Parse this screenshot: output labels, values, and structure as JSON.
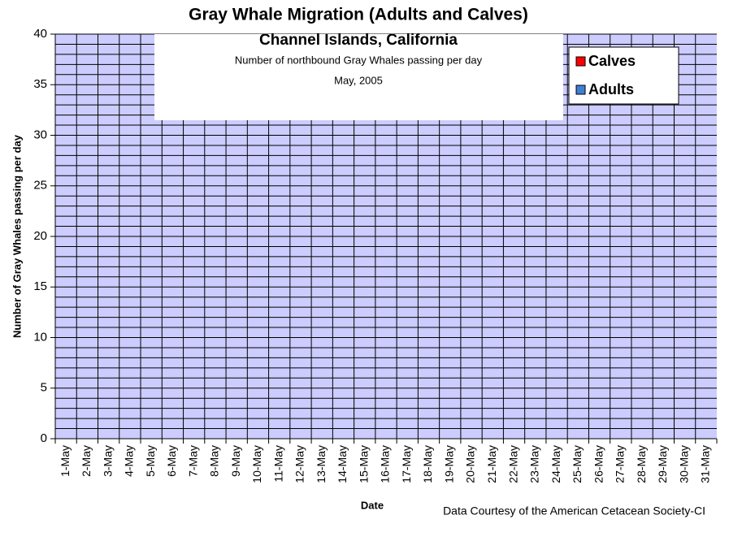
{
  "chart_data": {
    "type": "stacked_bar",
    "title": "Gray Whale Migration (Adults and Calves)",
    "subtitle": "Channel Islands, California",
    "annotations": [
      "Number of northbound Gray Whales passing per day",
      "May, 2005"
    ],
    "x_label": "Date",
    "y_label": "Number of Gray Whales passing per day",
    "source": "Data Courtesy of the American Cetacean Society-CI",
    "categories": [
      "1-May",
      "2-May",
      "3-May",
      "4-May",
      "5-May",
      "6-May",
      "7-May",
      "8-May",
      "9-May",
      "10-May",
      "11-May",
      "12-May",
      "13-May",
      "14-May",
      "15-May",
      "16-May",
      "17-May",
      "18-May",
      "19-May",
      "20-May",
      "21-May",
      "22-May",
      "23-May",
      "24-May",
      "25-May",
      "26-May",
      "27-May",
      "28-May",
      "29-May",
      "30-May",
      "31-May"
    ],
    "series": [
      {
        "name": "Calves",
        "color": "#ff0000",
        "values": [
          0,
          0,
          0,
          0,
          0,
          0,
          0,
          0,
          0,
          0,
          0,
          0,
          0,
          0,
          0,
          0,
          0,
          0,
          0,
          0,
          0,
          0,
          0,
          0,
          0,
          0,
          0,
          0,
          0,
          0,
          0
        ]
      },
      {
        "name": "Adults",
        "color": "#3f7fd4",
        "values": [
          0,
          0,
          0,
          0,
          0,
          0,
          0,
          0,
          0,
          0,
          0,
          0,
          0,
          0,
          0,
          0,
          0,
          0,
          0,
          0,
          0,
          0,
          0,
          0,
          0,
          0,
          0,
          0,
          0,
          0,
          0
        ]
      }
    ],
    "ylim": [
      0,
      40
    ],
    "yticks": [
      0,
      5,
      10,
      15,
      20,
      25,
      30,
      35,
      40
    ],
    "minor_yticks": [
      0,
      1,
      2,
      3,
      4,
      5,
      6,
      7,
      8,
      9,
      10,
      11,
      12,
      13,
      14,
      15,
      16,
      17,
      18,
      19,
      20,
      21,
      22,
      23,
      24,
      25,
      26,
      27,
      28,
      29,
      30,
      31,
      32,
      33,
      34,
      35,
      36,
      37,
      38,
      39,
      40
    ],
    "grid": true,
    "plot_background": "#ccccff",
    "legend_position": "upper right"
  }
}
